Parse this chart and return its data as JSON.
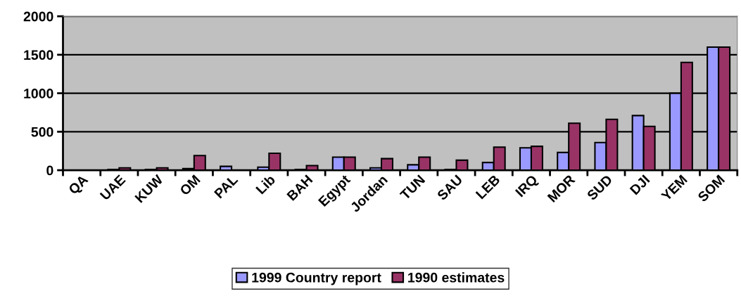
{
  "chart_data": {
    "type": "bar",
    "categories": [
      "QA",
      "UAE",
      "KUW",
      "OM",
      "PAL",
      "Lib",
      "BAH",
      "Egypt",
      "Jordan",
      "TUN",
      "SAU",
      "LEB",
      "IRQ",
      "MOR",
      "SUD",
      "DJI",
      "YEM",
      "SOM"
    ],
    "series": [
      {
        "name": "1999 Country report",
        "color": "#9999ff",
        "values": [
          null,
          10,
          10,
          20,
          50,
          40,
          10,
          170,
          30,
          70,
          10,
          100,
          290,
          230,
          360,
          710,
          1000,
          1600
        ]
      },
      {
        "name": "1990 estimates",
        "color": "#993366",
        "values": [
          null,
          30,
          30,
          190,
          null,
          220,
          60,
          170,
          150,
          170,
          130,
          300,
          310,
          610,
          660,
          570,
          1400,
          1600
        ]
      }
    ],
    "ylim": [
      0,
      2000
    ],
    "yticks": [
      0,
      500,
      1000,
      1500,
      2000
    ],
    "grid": "y",
    "legend": "bottom"
  }
}
